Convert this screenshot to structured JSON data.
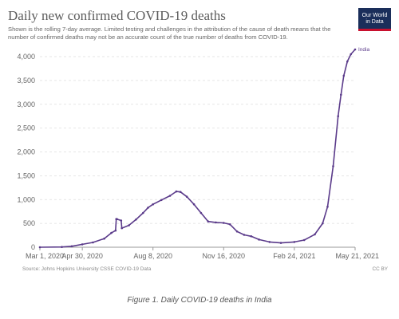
{
  "header": {
    "title": "Daily new confirmed COVID-19 deaths",
    "subtitle": "Shown is the rolling 7-day average. Limited testing and challenges in the attribution of the cause of death means that the number of confirmed deaths may not be an accurate count of the true number of deaths from COVID-19.",
    "logo_line1": "Our World",
    "logo_line2": "in Data"
  },
  "footer": {
    "source": "Source: Johns Hopkins University CSSE COVID-19 Data",
    "license": "CC BY",
    "caption": "Figure 1. Daily COVID-19 deaths in India"
  },
  "colors": {
    "series": "#5a3a8a",
    "grid": "#dddddd",
    "axis": "#999999",
    "logo_bg": "#1a2e5a",
    "logo_accent": "#c8102e"
  },
  "chart_data": {
    "type": "line",
    "title": "Daily new confirmed COVID-19 deaths",
    "xlabel": "",
    "ylabel": "",
    "ylim": [
      0,
      4000
    ],
    "yticks": [
      0,
      500,
      1000,
      1500,
      2000,
      2500,
      3000,
      3500,
      4000
    ],
    "ytick_labels": [
      "0",
      "500",
      "1,000",
      "1,500",
      "2,000",
      "2,500",
      "3,000",
      "3,500",
      "4,000"
    ],
    "xlim": [
      "2020-03-01",
      "2021-05-21"
    ],
    "xticks": [
      "2020-03-01",
      "2020-04-30",
      "2020-08-08",
      "2020-11-16",
      "2021-02-24",
      "2021-05-21"
    ],
    "xtick_labels": [
      "Mar 1, 2020",
      "Apr 30, 2020",
      "Aug 8, 2020",
      "Nov 16, 2020",
      "Feb 24, 2021",
      "May 21, 2021"
    ],
    "grid": true,
    "series": [
      {
        "name": "India",
        "x": [
          "2020-03-01",
          "2020-04-01",
          "2020-04-15",
          "2020-04-30",
          "2020-05-15",
          "2020-05-31",
          "2020-06-10",
          "2020-06-16",
          "2020-06-17",
          "2020-06-18",
          "2020-06-24",
          "2020-06-25",
          "2020-07-05",
          "2020-07-15",
          "2020-07-25",
          "2020-08-01",
          "2020-08-08",
          "2020-08-20",
          "2020-09-01",
          "2020-09-10",
          "2020-09-16",
          "2020-09-25",
          "2020-10-05",
          "2020-10-15",
          "2020-10-25",
          "2020-11-05",
          "2020-11-16",
          "2020-11-25",
          "2020-12-05",
          "2020-12-15",
          "2020-12-25",
          "2021-01-05",
          "2021-01-20",
          "2021-02-05",
          "2021-02-24",
          "2021-03-10",
          "2021-03-25",
          "2021-04-05",
          "2021-04-12",
          "2021-04-20",
          "2021-04-27",
          "2021-05-01",
          "2021-05-05",
          "2021-05-10",
          "2021-05-15",
          "2021-05-21"
        ],
        "y": [
          0,
          5,
          20,
          60,
          100,
          180,
          300,
          350,
          590,
          590,
          560,
          400,
          460,
          580,
          720,
          830,
          900,
          990,
          1080,
          1170,
          1160,
          1060,
          900,
          720,
          540,
          520,
          510,
          480,
          330,
          260,
          230,
          160,
          110,
          90,
          110,
          150,
          270,
          500,
          850,
          1700,
          2750,
          3200,
          3600,
          3900,
          4050,
          4150
        ]
      }
    ]
  }
}
